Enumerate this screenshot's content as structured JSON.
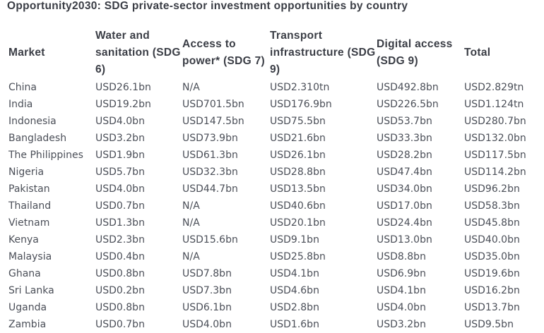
{
  "title": "Opportunity2030: SDG private-sector investment opportunities by country",
  "headers": [
    "Market",
    "Water and sanitation (SDG 6)",
    "Access to power* (SDG 7)",
    "Transport infrastructure (SDG 9)",
    "Digital access (SDG 9)",
    "Total"
  ],
  "rows": [
    [
      "China",
      "USD26.1bn",
      "N/A",
      "USD2.310tn",
      "USD492.8bn",
      "USD2.829tn"
    ],
    [
      "India",
      "USD19.2bn",
      "USD701.5bn",
      "USD176.9bn",
      "USD226.5bn",
      "USD1.124tn"
    ],
    [
      "Indonesia",
      "USD4.0bn",
      "USD147.5bn",
      "USD75.5bn",
      "USD53.7bn",
      "USD280.7bn"
    ],
    [
      "Bangladesh",
      "USD3.2bn",
      "USD73.9bn",
      "USD21.6bn",
      "USD33.3bn",
      "USD132.0bn"
    ],
    [
      "The Philippines",
      "USD1.9bn",
      "USD61.3bn",
      "USD26.1bn",
      "USD28.2bn",
      "USD117.5bn"
    ],
    [
      "Nigeria",
      "USD5.7bn",
      "USD32.3bn",
      "USD28.8bn",
      "USD47.4bn",
      "USD114.2bn"
    ],
    [
      "Pakistan",
      "USD4.0bn",
      "USD44.7bn",
      "USD13.5bn",
      "USD34.0bn",
      "USD96.2bn"
    ],
    [
      "Thailand",
      "USD0.7bn",
      "N/A",
      "USD40.6bn",
      "USD17.0bn",
      "USD58.3bn"
    ],
    [
      "Vietnam",
      "USD1.3bn",
      "N/A",
      "USD20.1bn",
      "USD24.4bn",
      "USD45.8bn"
    ],
    [
      "Kenya",
      "USD2.3bn",
      "USD15.6bn",
      "USD9.1bn",
      "USD13.0bn",
      "USD40.0bn"
    ],
    [
      "Malaysia",
      "USD0.4bn",
      "N/A",
      "USD25.8bn",
      "USD8.8bn",
      "USD35.0bn"
    ],
    [
      "Ghana",
      "USD0.8bn",
      "USD7.8bn",
      "USD4.1bn",
      "USD6.9bn",
      "USD19.6bn"
    ],
    [
      "Sri Lanka",
      "USD0.2bn",
      "USD7.3bn",
      "USD4.6bn",
      "USD4.1bn",
      "USD16.2bn"
    ],
    [
      "Uganda",
      "USD0.8bn",
      "USD6.1bn",
      "USD2.8bn",
      "USD4.0bn",
      "USD13.7bn"
    ],
    [
      "Zambia",
      "USD0.7bn",
      "USD4.0bn",
      "USD1.6bn",
      "USD3.2bn",
      "USD9.5bn"
    ]
  ],
  "colors": {
    "header_text": "#3a3d45",
    "cell_text": "#4b4f58",
    "background": "#ffffff"
  }
}
